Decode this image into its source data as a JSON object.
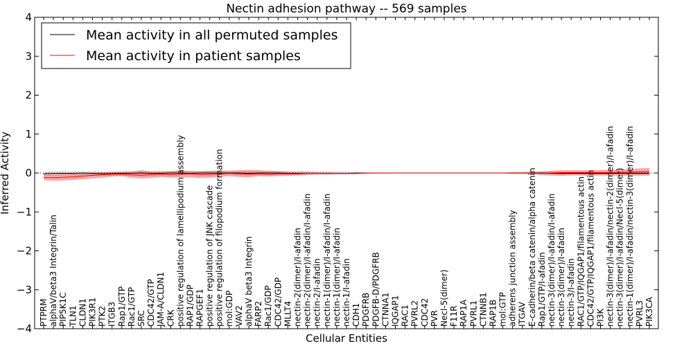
{
  "chart_data": {
    "type": "line",
    "title": "Nectin adhesion pathway -- 569 samples",
    "xlabel": "Cellular Entities",
    "ylabel": "Inferred Activity",
    "ylim": [
      -4,
      4
    ],
    "yticks": [
      "−4",
      "−3",
      "−2",
      "−1",
      "0",
      "1",
      "2",
      "3",
      "4"
    ],
    "legend": {
      "position": "top-left",
      "entries": [
        {
          "label": "Mean activity in all permuted samples",
          "color": "#000000"
        },
        {
          "label": "Mean activity in patient samples",
          "color": "#ff0000"
        }
      ]
    },
    "categories": [
      "PTPRM",
      "alphaV/beta3 Integrin/Talin",
      "PIP5K1C",
      "TLN1",
      "CLDN1",
      "PIK3R1",
      "PTK2",
      "ITGB3",
      "Rap1/GTP",
      "Rac1/GTP",
      "SRC",
      "CDC42/GTP",
      "JAM-A/CLDN1",
      "CRK",
      "positive regulation of lamellipodium assembly",
      "RAP1/GDP",
      "RAPGEF1",
      "positive regulation of JNK cascade",
      "positive regulation of filopodium formation",
      "mol:GDP",
      "VAV2",
      "alphaV beta3 Integrin",
      "FARP2",
      "Rac1/GDP",
      "CDC42/GDP",
      "MLLT4",
      "nectin-2(dimer)/I-afadin",
      "nectin-2(dimer)/I-afadin/I-afadin",
      "nectin-2/I-afadin",
      "nectin-1(dimer)/I-afadin/I-afadin",
      "nectin-1(dimer)/I-afadin",
      "nectin-1/I-afadin",
      "CDH1",
      "PDGFRB",
      "PDGFB-D/PDGFRB",
      "CTNNA1",
      "IQGAP1",
      "RAC1",
      "PVRL2",
      "CDC42",
      "PVR",
      "Necl-5(dimer)",
      "F11R",
      "RAP1A",
      "PVRL1",
      "CTNNB1",
      "RAP1B",
      "mol:GTP",
      "adherens junction assembly",
      "ITGAV",
      "E-cadherin/beta catenin/alpha catenin",
      "Rap1/GTP/I-afadin",
      "nectin-3(dimer)/I-afadin/I-afadin",
      "nectin-3(dimer)/I-afadin",
      "nectin-3/I-afadin",
      "RAC1/GTP/IQGAP1/filamentous actin",
      "CDC42/GTP/IQGAP1/filamentous actin",
      "PI3K",
      "nectin-3(dimer)/I-afadin/nectin-2(dimer)/I-afadin",
      "nectin-3(dimer)/I-afadin/Necl-5(dimer)",
      "nectin-1(dimer)/I-afadin/nectin-3(dimer)/I-afadin",
      "PVRL3",
      "PIK3CA"
    ],
    "series": [
      {
        "name": "Mean activity in all permuted samples",
        "color": "#000000",
        "values": [
          -0.02,
          -0.01,
          -0.01,
          -0.01,
          0.0,
          -0.01,
          -0.02,
          -0.01,
          -0.01,
          -0.01,
          0.0,
          -0.01,
          -0.01,
          0.0,
          0.0,
          -0.01,
          0.0,
          0.0,
          0.0,
          0.0,
          0.0,
          -0.01,
          0.0,
          0.0,
          0.0,
          -0.01,
          -0.01,
          -0.01,
          -0.01,
          -0.01,
          -0.01,
          -0.01,
          0.0,
          0.0,
          0.0,
          0.0,
          0.0,
          0.0,
          0.0,
          0.0,
          0.0,
          0.0,
          0.0,
          0.0,
          0.0,
          0.0,
          0.0,
          0.0,
          0.0,
          0.0,
          0.0,
          0.0,
          -0.01,
          -0.01,
          -0.01,
          -0.01,
          -0.01,
          -0.01,
          -0.01,
          -0.01,
          -0.01,
          -0.01,
          -0.01
        ],
        "band_low": [
          -0.08,
          -0.07,
          -0.06,
          -0.06,
          -0.06,
          -0.06,
          -0.06,
          -0.06,
          -0.06,
          -0.06,
          -0.05,
          -0.06,
          -0.05,
          -0.05,
          -0.05,
          -0.05,
          -0.05,
          -0.05,
          -0.05,
          -0.05,
          -0.05,
          -0.05,
          -0.05,
          -0.05,
          -0.05,
          -0.05,
          -0.05,
          -0.05,
          -0.05,
          -0.05,
          -0.05,
          -0.05,
          -0.04,
          -0.03,
          -0.03,
          -0.03,
          -0.02,
          -0.02,
          -0.02,
          -0.02,
          -0.02,
          -0.02,
          -0.02,
          -0.02,
          -0.02,
          -0.02,
          -0.02,
          -0.02,
          -0.03,
          -0.03,
          -0.04,
          -0.05,
          -0.06,
          -0.06,
          -0.06,
          -0.06,
          -0.06,
          -0.06,
          -0.07,
          -0.07,
          -0.07,
          -0.07,
          -0.07
        ],
        "band_high": [
          0.04,
          0.05,
          0.05,
          0.05,
          0.05,
          0.05,
          0.04,
          0.05,
          0.05,
          0.05,
          0.05,
          0.05,
          0.05,
          0.05,
          0.05,
          0.05,
          0.05,
          0.05,
          0.05,
          0.05,
          0.05,
          0.05,
          0.05,
          0.05,
          0.05,
          0.04,
          0.04,
          0.04,
          0.04,
          0.04,
          0.04,
          0.04,
          0.03,
          0.03,
          0.02,
          0.02,
          0.02,
          0.02,
          0.02,
          0.02,
          0.02,
          0.02,
          0.02,
          0.02,
          0.02,
          0.02,
          0.02,
          0.02,
          0.03,
          0.03,
          0.04,
          0.04,
          0.04,
          0.04,
          0.04,
          0.04,
          0.04,
          0.04,
          0.05,
          0.05,
          0.05,
          0.05,
          0.05
        ]
      },
      {
        "name": "Mean activity in patient samples",
        "color": "#ff0000",
        "values": [
          -0.12,
          -0.12,
          -0.11,
          -0.1,
          -0.08,
          -0.06,
          -0.05,
          -0.04,
          -0.03,
          -0.05,
          -0.06,
          -0.04,
          -0.03,
          -0.04,
          -0.03,
          -0.02,
          -0.04,
          -0.03,
          -0.02,
          -0.01,
          -0.02,
          -0.03,
          -0.02,
          -0.03,
          -0.02,
          -0.02,
          -0.02,
          -0.01,
          -0.01,
          -0.01,
          -0.01,
          -0.01,
          -0.01,
          0.0,
          0.0,
          0.0,
          0.0,
          0.0,
          0.0,
          0.0,
          0.0,
          0.0,
          0.0,
          0.0,
          0.0,
          0.0,
          0.0,
          0.0,
          0.0,
          0.0,
          0.0,
          -0.01,
          0.0,
          0.01,
          0.01,
          0.01,
          0.01,
          0.01,
          0.01,
          0.02,
          0.02,
          0.03,
          0.03
        ],
        "band_low": [
          -0.18,
          -0.2,
          -0.19,
          -0.18,
          -0.16,
          -0.14,
          -0.12,
          -0.09,
          -0.08,
          -0.12,
          -0.14,
          -0.13,
          -0.1,
          -0.12,
          -0.12,
          -0.11,
          -0.13,
          -0.12,
          -0.1,
          -0.08,
          -0.1,
          -0.11,
          -0.08,
          -0.09,
          -0.08,
          -0.07,
          -0.06,
          -0.05,
          -0.04,
          -0.04,
          -0.03,
          -0.03,
          -0.03,
          -0.02,
          -0.01,
          -0.01,
          -0.01,
          -0.01,
          -0.01,
          -0.01,
          -0.01,
          -0.01,
          -0.01,
          -0.01,
          -0.01,
          -0.01,
          -0.01,
          -0.01,
          -0.02,
          -0.02,
          -0.03,
          -0.05,
          -0.06,
          -0.07,
          -0.06,
          -0.06,
          -0.07,
          -0.06,
          -0.06,
          -0.06,
          -0.06,
          -0.06,
          -0.06
        ],
        "band_high": [
          -0.04,
          -0.03,
          -0.02,
          -0.01,
          0.0,
          0.01,
          0.02,
          0.02,
          0.03,
          0.04,
          0.07,
          0.04,
          0.04,
          0.05,
          0.07,
          0.05,
          0.05,
          0.06,
          0.06,
          0.06,
          0.07,
          0.08,
          0.07,
          0.06,
          0.05,
          0.04,
          0.03,
          0.03,
          0.02,
          0.02,
          0.01,
          0.01,
          0.01,
          0.01,
          0.01,
          0.01,
          0.01,
          0.01,
          0.01,
          0.01,
          0.01,
          0.01,
          0.01,
          0.01,
          0.01,
          0.01,
          0.01,
          0.01,
          0.02,
          0.02,
          0.03,
          0.04,
          0.06,
          0.07,
          0.07,
          0.07,
          0.07,
          0.08,
          0.08,
          0.09,
          0.1,
          0.12,
          0.13
        ]
      }
    ]
  }
}
